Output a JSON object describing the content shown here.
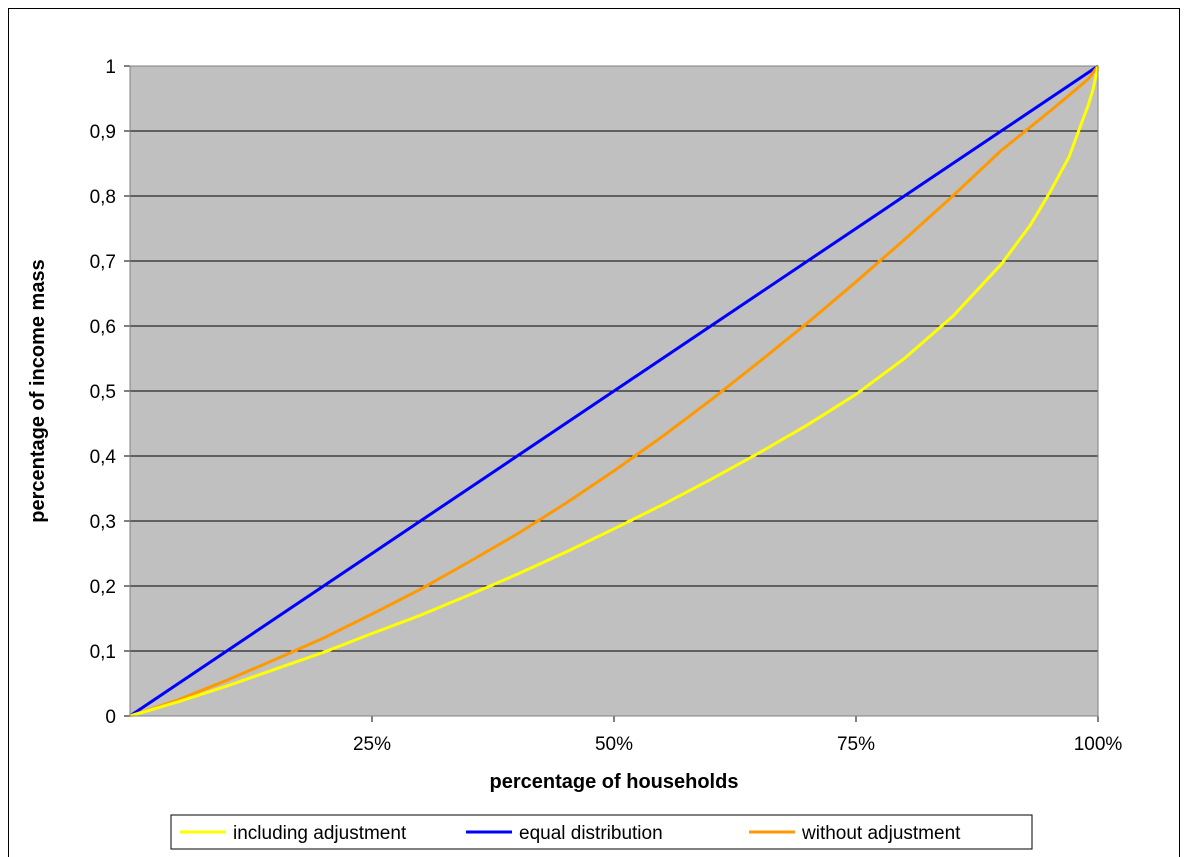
{
  "chart_data": {
    "type": "line",
    "title": "",
    "xlabel": "percentage of households",
    "ylabel": "percentage of income mass",
    "xlim": [
      0,
      1
    ],
    "ylim": [
      0,
      1
    ],
    "x_ticks": [
      {
        "value": 0.25,
        "label": "25%"
      },
      {
        "value": 0.5,
        "label": "50%"
      },
      {
        "value": 0.75,
        "label": "75%"
      },
      {
        "value": 1.0,
        "label": "100%"
      }
    ],
    "y_ticks": [
      {
        "value": 0,
        "label": "0"
      },
      {
        "value": 0.1,
        "label": "0,1"
      },
      {
        "value": 0.2,
        "label": "0,2"
      },
      {
        "value": 0.3,
        "label": "0,3"
      },
      {
        "value": 0.4,
        "label": "0,4"
      },
      {
        "value": 0.5,
        "label": "0,5"
      },
      {
        "value": 0.6,
        "label": "0,6"
      },
      {
        "value": 0.7,
        "label": "0,7"
      },
      {
        "value": 0.8,
        "label": "0,8"
      },
      {
        "value": 0.9,
        "label": "0,9"
      },
      {
        "value": 1.0,
        "label": "1"
      }
    ],
    "grid": "horizontal",
    "plot_background": "#c0c0c0",
    "legend_position": "bottom",
    "series": [
      {
        "name": "including adjustment",
        "color": "#ffff00",
        "x": [
          0,
          0.05,
          0.1,
          0.15,
          0.2,
          0.25,
          0.3,
          0.35,
          0.4,
          0.45,
          0.5,
          0.55,
          0.6,
          0.65,
          0.7,
          0.75,
          0.8,
          0.85,
          0.9,
          0.93,
          0.95,
          0.97,
          0.98,
          0.99,
          0.995,
          1.0
        ],
        "y": [
          0,
          0.022,
          0.046,
          0.072,
          0.098,
          0.127,
          0.155,
          0.186,
          0.218,
          0.252,
          0.288,
          0.325,
          0.364,
          0.405,
          0.448,
          0.495,
          0.55,
          0.615,
          0.695,
          0.755,
          0.805,
          0.86,
          0.9,
          0.94,
          0.965,
          1.0
        ]
      },
      {
        "name": "equal distribution",
        "color": "#0000ff",
        "x": [
          0,
          1
        ],
        "y": [
          0,
          1
        ]
      },
      {
        "name": "without adjustment",
        "color": "#ff9900",
        "x": [
          0,
          0.05,
          0.1,
          0.15,
          0.2,
          0.25,
          0.3,
          0.35,
          0.4,
          0.45,
          0.5,
          0.55,
          0.6,
          0.65,
          0.7,
          0.75,
          0.8,
          0.85,
          0.9,
          0.95,
          0.97,
          0.99,
          1.0
        ],
        "y": [
          0,
          0.025,
          0.055,
          0.087,
          0.12,
          0.157,
          0.195,
          0.237,
          0.28,
          0.327,
          0.377,
          0.43,
          0.486,
          0.545,
          0.605,
          0.668,
          0.733,
          0.8,
          0.87,
          0.93,
          0.955,
          0.98,
          1.0
        ]
      }
    ]
  }
}
